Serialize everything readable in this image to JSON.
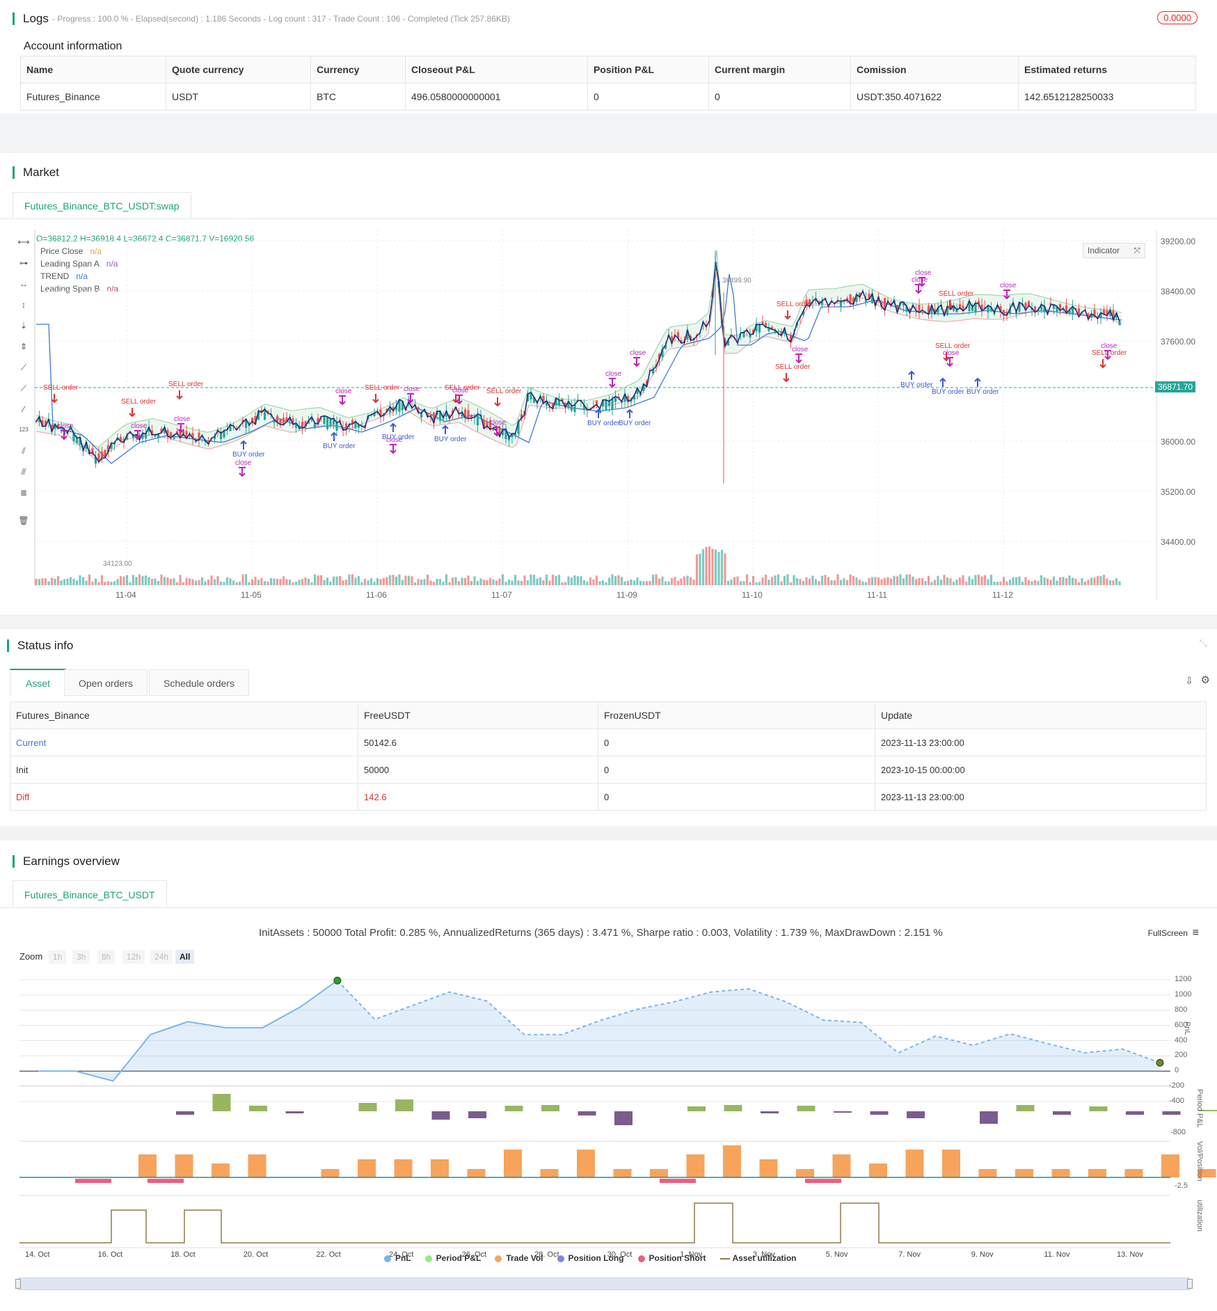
{
  "logs": {
    "title": "Logs",
    "progress_text": "- Progress : 100.0 % - Elapsed(second) : 1.186  Seconds - Log count : 317 - Trade Count : 106 - Completed (Tick 257.86KB)",
    "badge_value": "0.0000"
  },
  "account": {
    "title": "Account information",
    "headers": [
      "Name",
      "Quote currency",
      "Currency",
      "Closeout P&L",
      "Position P&L",
      "Current margin",
      "Comission",
      "Estimated returns"
    ],
    "row": [
      "Futures_Binance",
      "USDT",
      "BTC",
      "496.0580000000001",
      "0",
      "0",
      "USDT:350.4071622",
      "142.6512128250033"
    ]
  },
  "market": {
    "title": "Market",
    "tab": "Futures_Binance_BTC_USDT:swap",
    "ohlc": "O=36812.2 H=36918.4 L=36672.4 C=36871.7 V=16920.56",
    "indicator_btn": "Indicator",
    "legend": [
      {
        "name": "Price Close",
        "value": "n/a",
        "color": "#f0a030"
      },
      {
        "name": "Leading Span A",
        "value": "n/a",
        "color": "#9b59b6"
      },
      {
        "name": "TREND",
        "value": "n/a",
        "color": "#3a7bd5"
      },
      {
        "name": "Leading Span B",
        "value": "n/a",
        "color": "#d63384"
      }
    ],
    "y_ticks": [
      "39200.00",
      "38400.00",
      "37600.00",
      "36000.00",
      "35200.00",
      "34400.00"
    ],
    "current_price": "36871.70",
    "x_ticks": [
      "11-04",
      "11-05",
      "11-06",
      "11-07",
      "11-09",
      "11-10",
      "11-11",
      "11-12"
    ],
    "high_label": "38499.90",
    "low_label": "34123.00"
  },
  "status": {
    "title": "Status info",
    "tabs": [
      "Asset",
      "Open orders",
      "Schedule orders"
    ],
    "headers": [
      "Futures_Binance",
      "FreeUSDT",
      "FrozenUSDT",
      "Update"
    ],
    "rows": [
      {
        "label": "Current",
        "free": "50142.6",
        "frozen": "0",
        "update": "2023-11-13 23:00:00"
      },
      {
        "label": "Init",
        "free": "50000",
        "frozen": "0",
        "update": "2023-10-15 00:00:00"
      },
      {
        "label": "Diff",
        "free": "142.6",
        "frozen": "0",
        "update": "2023-11-13 23:00:00"
      }
    ]
  },
  "earnings": {
    "title": "Earnings overview",
    "tab": "Futures_Binance_BTC_USDT",
    "summary": "InitAssets : 50000 Total Profit: 0.285 %, AnnualizedReturns (365 days) : 3.471 %, Sharpe ratio : 0.003, Volatility : 1.739 %, MaxDrawDown : 2.151 %",
    "fullscreen": "FullScreen",
    "zoom_label": "Zoom",
    "zoom_options": [
      "1h",
      "3h",
      "8h",
      "12h",
      "24h",
      "All"
    ],
    "pnl_ticks": [
      "1200",
      "1000",
      "800",
      "600",
      "400",
      "200",
      "0",
      "-200",
      "-400"
    ],
    "period_tick": "-800",
    "vol_tick": "-2.5",
    "axis_labels": [
      "PnL",
      "Period P&L",
      "Vol/Position",
      "utilization"
    ],
    "x_dates": [
      "14. Oct",
      "16. Oct",
      "18. Oct",
      "20. Oct",
      "22. Oct",
      "24. Oct",
      "26. Oct",
      "28. Oct",
      "30. Oct",
      "1. Nov",
      "3. Nov",
      "5. Nov",
      "7. Nov",
      "9. Nov",
      "11. Nov",
      "13. Nov"
    ],
    "legend": [
      {
        "name": "PnL",
        "color": "#7cb5ec"
      },
      {
        "name": "Period P&L",
        "color": "#90ed7d"
      },
      {
        "name": "Trade Vol",
        "color": "#f7a35c"
      },
      {
        "name": "Position Long",
        "color": "#8085e9"
      },
      {
        "name": "Position Short",
        "color": "#f15c80"
      },
      {
        "name": "Asset utilization",
        "color": "#8d7b4a"
      }
    ]
  },
  "chart_data": {
    "type": "line",
    "x": [
      "14. Oct",
      "15. Oct",
      "16. Oct",
      "17. Oct",
      "18. Oct",
      "19. Oct",
      "20. Oct",
      "21. Oct",
      "22. Oct",
      "23. Oct",
      "24. Oct",
      "25. Oct",
      "26. Oct",
      "27. Oct",
      "28. Oct",
      "29. Oct",
      "30. Oct",
      "31. Oct",
      "1. Nov",
      "2. Nov",
      "3. Nov",
      "4. Nov",
      "5. Nov",
      "6. Nov",
      "7. Nov",
      "8. Nov",
      "9. Nov",
      "10. Nov",
      "11. Nov",
      "12. Nov",
      "13. Nov"
    ],
    "series": [
      {
        "name": "PnL",
        "values": [
          0,
          0,
          -130,
          480,
          650,
          570,
          570,
          840,
          1190,
          680,
          860,
          1040,
          920,
          480,
          480,
          660,
          810,
          910,
          1040,
          1080,
          910,
          670,
          640,
          240,
          460,
          340,
          490,
          360,
          240,
          290,
          110
        ]
      }
    ],
    "ylim": [
      -400,
      1200
    ]
  }
}
